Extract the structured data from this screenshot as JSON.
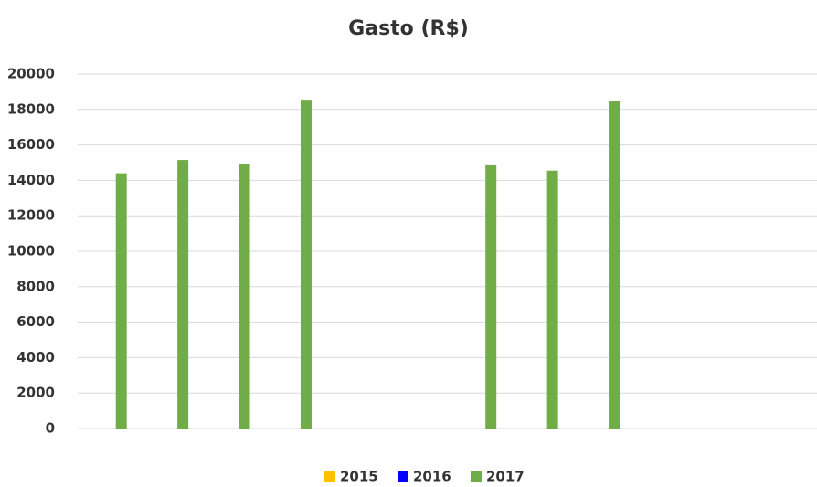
{
  "chart_data": {
    "type": "bar",
    "title": "Gasto (R$)",
    "categories": [
      null,
      null,
      null,
      null,
      null,
      null,
      null,
      null,
      null,
      null,
      null,
      null
    ],
    "series": [
      {
        "name": "2015",
        "color": "#ffc000",
        "values": [
          null,
          null,
          null,
          null,
          null,
          null,
          null,
          null,
          null,
          null,
          null,
          null
        ]
      },
      {
        "name": "2016",
        "color": "#0000ff",
        "values": [
          null,
          null,
          null,
          null,
          null,
          null,
          null,
          null,
          null,
          null,
          null,
          null
        ]
      },
      {
        "name": "2017",
        "color": "#70ad47",
        "values": [
          14400,
          15150,
          14950,
          18550,
          null,
          null,
          14850,
          14550,
          18500,
          null,
          null,
          null
        ]
      }
    ],
    "ylim": [
      0,
      20000
    ],
    "yticks": [
      0,
      2000,
      4000,
      6000,
      8000,
      10000,
      12000,
      14000,
      16000,
      18000,
      20000
    ],
    "grid": true,
    "legend": "bottom"
  }
}
